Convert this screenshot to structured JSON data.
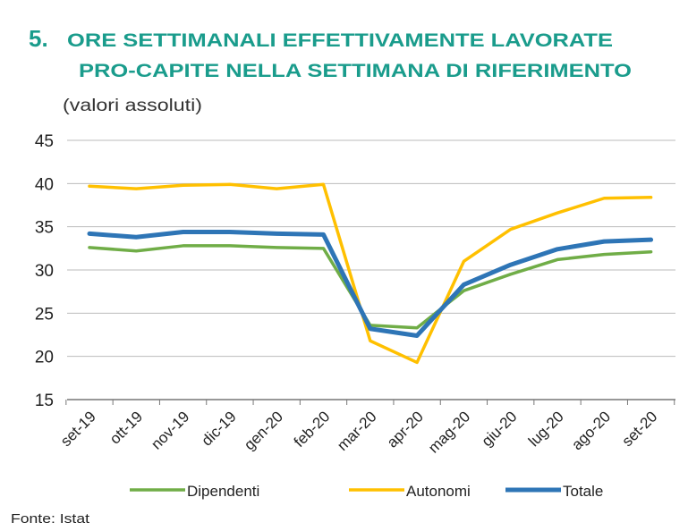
{
  "chart_data": {
    "type": "line",
    "number": "5.",
    "title": [
      "ORE SETTIMANALI EFFETTIVAMENTE LAVORATE",
      "PRO-CAPITE NELLA SETTIMANA DI RIFERIMENTO"
    ],
    "subtitle": "(valori assoluti)",
    "source": "Fonte: Istat",
    "categories": [
      "set-19",
      "ott-19",
      "nov-19",
      "dic-19",
      "gen-20",
      "feb-20",
      "mar-20",
      "apr-20",
      "mag-20",
      "giu-20",
      "lug-20",
      "ago-20",
      "set-20"
    ],
    "series": [
      {
        "name": "Dipendenti",
        "color": "#70ad47",
        "values": [
          32.6,
          32.2,
          32.8,
          32.8,
          32.6,
          32.5,
          23.6,
          23.3,
          27.6,
          29.5,
          31.2,
          31.8,
          32.1
        ]
      },
      {
        "name": "Autonomi",
        "color": "#ffc000",
        "values": [
          39.7,
          39.4,
          39.8,
          39.9,
          39.4,
          39.9,
          21.8,
          19.3,
          31.0,
          34.7,
          36.6,
          38.3,
          38.4
        ]
      },
      {
        "name": "Totale",
        "color": "#2e75b6",
        "values": [
          34.2,
          33.8,
          34.4,
          34.4,
          34.2,
          34.1,
          23.2,
          22.4,
          28.3,
          30.6,
          32.4,
          33.3,
          33.5
        ]
      }
    ],
    "ylim": [
      15,
      45
    ],
    "yticks": [
      15,
      20,
      25,
      30,
      35,
      40,
      45
    ],
    "grid": true
  }
}
